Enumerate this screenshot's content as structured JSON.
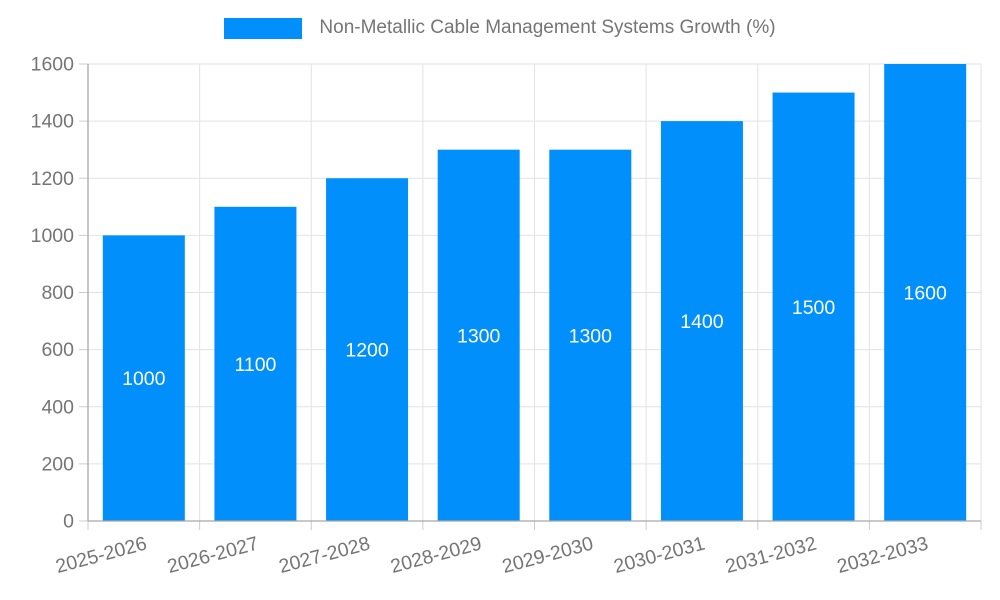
{
  "legend": {
    "label": "Non-Metallic Cable Management Systems Growth (%)"
  },
  "colors": {
    "bar": "#008FFB",
    "grid": "#e2e2e2",
    "axis": "#a6a6a6",
    "tick": "#cccccc",
    "axis_text": "#757575",
    "bar_label_text": "#ffffff"
  },
  "chart_data": {
    "type": "bar",
    "title": "Non-Metallic Cable Management Systems Growth (%)",
    "categories": [
      "2025-2026",
      "2026-2027",
      "2027-2028",
      "2028-2029",
      "2029-2030",
      "2030-2031",
      "2031-2032",
      "2032-2033"
    ],
    "values": [
      1000,
      1100,
      1200,
      1300,
      1300,
      1400,
      1500,
      1600
    ],
    "xlabel": "",
    "ylabel": "",
    "ylim": [
      0,
      1600
    ],
    "ytick_step": 200,
    "grid": true,
    "legend_position": "top",
    "bar_value_labels": "inside-center"
  }
}
